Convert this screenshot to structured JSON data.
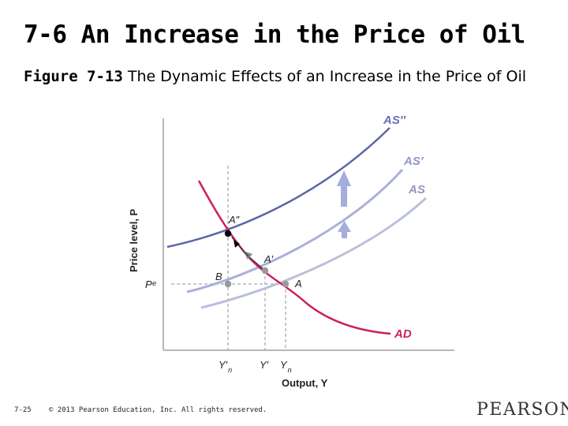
{
  "slide": {
    "title": "7-6 An Increase in the Price of Oil",
    "figure_label": "Figure 7-13",
    "figure_caption": "The Dynamic Effects of an Increase in the Price of Oil"
  },
  "diagram": {
    "x_axis_label": "Output, Y",
    "y_axis_label": "Price level, P",
    "curves": {
      "as_double_prime": "AS″",
      "as_prime": "AS′",
      "as": "AS",
      "ad": "AD"
    },
    "points": {
      "a_double_prime": "A″",
      "a_prime": "A′",
      "a": "A",
      "b": "B"
    },
    "price_tick": "Pᵉ",
    "x_ticks": {
      "yn_prime": "Y′",
      "y_prime": "Y′",
      "yn": "Y"
    },
    "subscript_n": "n",
    "colors": {
      "as_curves": "#8f97c4",
      "as_double_prime": "#5b66a8",
      "ad_curve": "#cc1f63",
      "label_blue": "#6570b3",
      "arrows": "#9aa6d6",
      "axis": "#b8b8b8",
      "point_black": "#000000",
      "point_gray": "#999999"
    }
  },
  "footer": {
    "page_number": "7-25",
    "copyright": "© 2013 Pearson Education, Inc. All rights reserved.",
    "brand": "PEARSON"
  }
}
